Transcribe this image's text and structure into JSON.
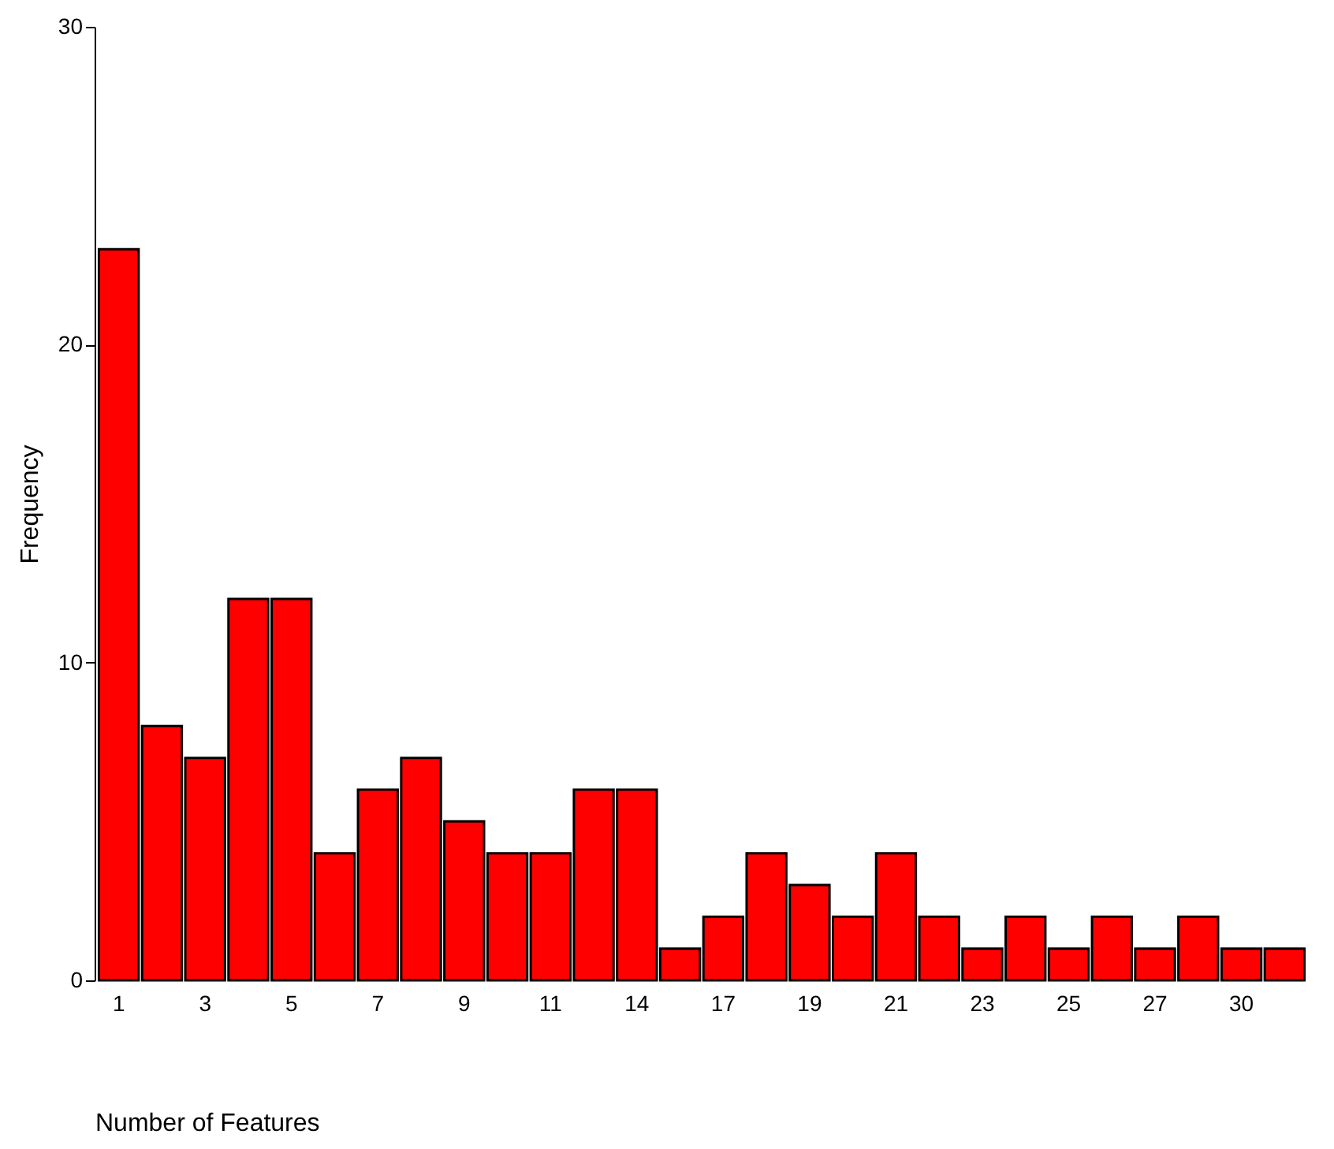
{
  "chart_data": {
    "type": "bar",
    "xlabel": "Number of Features",
    "ylabel": "Frequency",
    "categories": [
      "1",
      null,
      "3",
      null,
      "5",
      null,
      "7",
      null,
      "9",
      null,
      "11",
      null,
      "14",
      null,
      "17",
      null,
      "19",
      null,
      "21",
      null,
      "23",
      null,
      "25",
      null,
      "27",
      null,
      "30",
      null
    ],
    "values": [
      23,
      8,
      7,
      12,
      12,
      4,
      6,
      7,
      5,
      4,
      4,
      6,
      6,
      1,
      2,
      4,
      3,
      2,
      4,
      2,
      1,
      2,
      1,
      2,
      1,
      2,
      1,
      1
    ],
    "color": "#ff0000",
    "ylim": [
      0,
      30
    ],
    "yticks": [
      0,
      10,
      20,
      30
    ],
    "grid": false
  }
}
